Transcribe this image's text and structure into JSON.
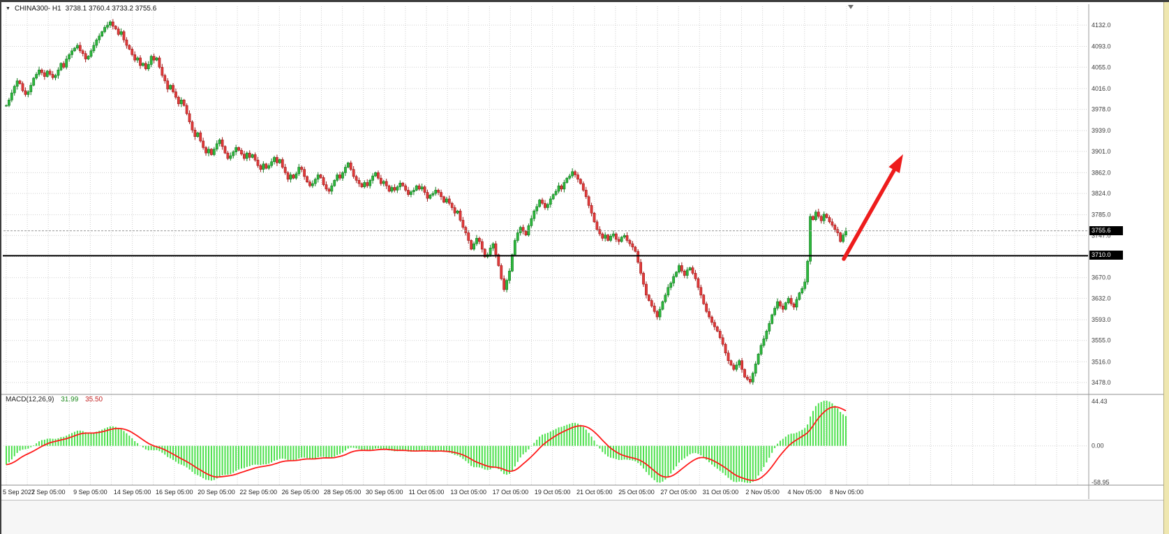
{
  "header": {
    "symbol": "CHINA300- H1",
    "ohlc": "3738.1 3760.4 3733.2 3755.6"
  },
  "price_tags": {
    "bid": "3755.6",
    "hline": "3710.0"
  },
  "macd": {
    "label": "MACD(12,26,9)",
    "value_main": "31.99",
    "value_signal": "35.50",
    "axis_labels": [
      "44.43",
      "0.00",
      "-58.95"
    ]
  },
  "colors": {
    "bull": "#2db83d",
    "bull_edge": "#127a1f",
    "bear": "#e23b3b",
    "bear_edge": "#9e1a1a",
    "macd_hist": "#4ce04c",
    "signal": "#ff1a1a",
    "grid": "#cfcfcf",
    "hline": "#000000",
    "arrow": "#ee1c1c",
    "axis_text": "#3a3a3a"
  },
  "chart_data": {
    "type": "candlestick",
    "title": "CHINA300- H1",
    "timeframe": "H1",
    "grid": true,
    "x_axis_labels": [
      "5 Sep 2022",
      "7 Sep 05:00",
      "9 Sep 05:00",
      "14 Sep 05:00",
      "16 Sep 05:00",
      "20 Sep 05:00",
      "22 Sep 05:00",
      "26 Sep 05:00",
      "28 Sep 05:00",
      "30 Sep 05:00",
      "11 Oct 05:00",
      "13 Oct 05:00",
      "17 Oct 05:00",
      "19 Oct 05:00",
      "21 Oct 05:00",
      "25 Oct 05:00",
      "27 Oct 05:00",
      "31 Oct 05:00",
      "2 Nov 05:00",
      "4 Nov 05:00",
      "8 Nov 05:00"
    ],
    "y_axis": {
      "values": [
        4132,
        4093,
        4055,
        4016,
        3978,
        3939,
        3901,
        3862,
        3824,
        3785,
        3747,
        3708.5,
        3670,
        3632,
        3593,
        3555,
        3516,
        3478
      ],
      "labels": [
        "4132.0",
        "4093.0",
        "4055.0",
        "4016.0",
        "3978.0",
        "3939.0",
        "3901.0",
        "3862.0",
        "3824.0",
        "3785.0",
        "3747.0",
        "",
        "3670.0",
        "3632.0",
        "3593.0",
        "3555.0",
        "3516.0",
        "3478.0"
      ]
    },
    "ylim": [
      3478,
      4132
    ],
    "closes": [
      3985,
      3995,
      4008,
      4020,
      4030,
      4025,
      4012,
      4005,
      4010,
      4022,
      4035,
      4042,
      4050,
      4045,
      4038,
      4048,
      4042,
      4036,
      4040,
      4050,
      4062,
      4055,
      4070,
      4078,
      4085,
      4090,
      4095,
      4085,
      4080,
      4070,
      4075,
      4085,
      4095,
      4105,
      4112,
      4120,
      4128,
      4132,
      4138,
      4130,
      4125,
      4115,
      4120,
      4105,
      4095,
      4088,
      4078,
      4068,
      4072,
      4058,
      4062,
      4052,
      4060,
      4075,
      4068,
      4072,
      4055,
      4040,
      4030,
      4015,
      4022,
      4010,
      4000,
      3988,
      3995,
      3985,
      3970,
      3955,
      3940,
      3928,
      3935,
      3920,
      3908,
      3898,
      3905,
      3895,
      3905,
      3915,
      3922,
      3910,
      3898,
      3888,
      3893,
      3900,
      3908,
      3903,
      3896,
      3888,
      3898,
      3890,
      3895,
      3885,
      3875,
      3868,
      3878,
      3870,
      3875,
      3882,
      3890,
      3880,
      3886,
      3872,
      3862,
      3850,
      3858,
      3852,
      3860,
      3872,
      3868,
      3855,
      3845,
      3838,
      3842,
      3850,
      3858,
      3853,
      3840,
      3832,
      3828,
      3838,
      3848,
      3858,
      3852,
      3862,
      3872,
      3880,
      3868,
      3855,
      3848,
      3842,
      3836,
      3844,
      3838,
      3848,
      3856,
      3862,
      3852,
      3842,
      3846,
      3838,
      3828,
      3835,
      3830,
      3836,
      3843,
      3838,
      3830,
      3822,
      3827,
      3830,
      3838,
      3832,
      3836,
      3826,
      3815,
      3821,
      3824,
      3830,
      3826,
      3818,
      3808,
      3814,
      3806,
      3798,
      3788,
      3792,
      3775,
      3762,
      3752,
      3738,
      3722,
      3732,
      3742,
      3736,
      3722,
      3708,
      3712,
      3724,
      3732,
      3712,
      3692,
      3668,
      3648,
      3665,
      3682,
      3712,
      3738,
      3752,
      3762,
      3755,
      3748,
      3765,
      3778,
      3792,
      3800,
      3812,
      3806,
      3798,
      3804,
      3814,
      3822,
      3828,
      3838,
      3832,
      3844,
      3852,
      3856,
      3864,
      3858,
      3850,
      3842,
      3830,
      3818,
      3802,
      3788,
      3772,
      3758,
      3750,
      3742,
      3748,
      3738,
      3746,
      3750,
      3740,
      3736,
      3744,
      3747,
      3738,
      3732,
      3726,
      3718,
      3698,
      3678,
      3658,
      3638,
      3628,
      3618,
      3608,
      3598,
      3612,
      3626,
      3638,
      3652,
      3660,
      3672,
      3680,
      3692,
      3682,
      3674,
      3684,
      3688,
      3678,
      3668,
      3652,
      3638,
      3622,
      3608,
      3598,
      3588,
      3580,
      3572,
      3560,
      3548,
      3532,
      3518,
      3510,
      3502,
      3510,
      3518,
      3502,
      3488,
      3484,
      3479,
      3495,
      3512,
      3530,
      3546,
      3558,
      3572,
      3586,
      3602,
      3614,
      3626,
      3618,
      3612,
      3624,
      3632,
      3622,
      3616,
      3630,
      3642,
      3650,
      3662,
      3700,
      3782,
      3776,
      3790,
      3782,
      3774,
      3786,
      3780,
      3772,
      3766,
      3758,
      3752,
      3736,
      3748,
      3755.6
    ],
    "last_close": 3755.6,
    "horizontal_line": 3710.0,
    "indicator": {
      "type": "MACD",
      "params": [
        12,
        26,
        9
      ],
      "last_main": 31.99,
      "last_signal": 35.5,
      "scale_max": 44.43,
      "scale_min": -58.95
    },
    "annotation_arrow": {
      "from": [
        1207,
        368
      ],
      "to": [
        1292,
        218
      ],
      "direction": "up-right"
    }
  }
}
